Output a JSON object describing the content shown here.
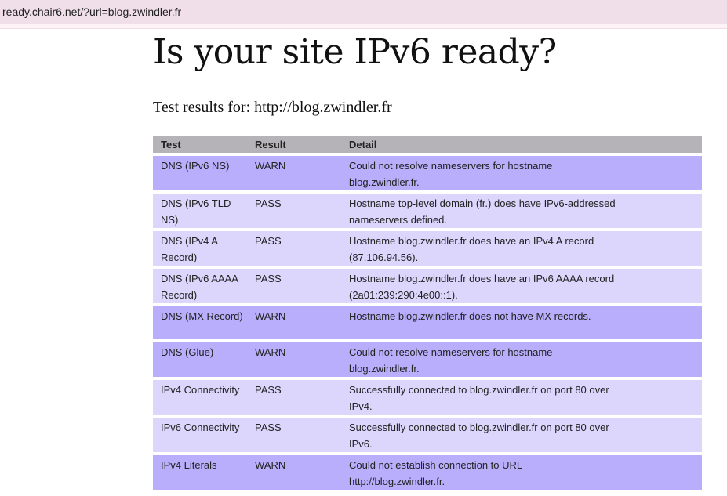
{
  "browser": {
    "url": "ready.chair6.net/?url=blog.zwindler.fr"
  },
  "page": {
    "title": "Is your site IPv6 ready?",
    "subtitle": "Test results for: http://blog.zwindler.fr"
  },
  "table": {
    "headers": [
      "Test",
      "Result",
      "Detail"
    ],
    "rows": [
      {
        "test": "DNS (IPv6 NS)",
        "result": "WARN",
        "detail": "Could not resolve nameservers for hostname blog.zwindler.fr."
      },
      {
        "test": "DNS (IPv6 TLD NS)",
        "result": "PASS",
        "detail": "Hostname top-level domain (fr.) does have IPv6-addressed nameservers defined."
      },
      {
        "test": "DNS (IPv4 A Record)",
        "result": "PASS",
        "detail": "Hostname blog.zwindler.fr does have an IPv4 A record (87.106.94.56)."
      },
      {
        "test": "DNS (IPv6 AAAA Record)",
        "result": "PASS",
        "detail": "Hostname blog.zwindler.fr does have an IPv6 AAAA record (2a01:239:290:4e00::1)."
      },
      {
        "test": "DNS (MX Record)",
        "result": "WARN",
        "detail": "Hostname blog.zwindler.fr does not have MX records."
      },
      {
        "test": "DNS (Glue)",
        "result": "WARN",
        "detail": "Could not resolve nameservers for hostname blog.zwindler.fr."
      },
      {
        "test": "IPv4 Connectivity",
        "result": "PASS",
        "detail": "Successfully connected to blog.zwindler.fr on port 80 over IPv4."
      },
      {
        "test": "IPv6 Connectivity",
        "result": "PASS",
        "detail": "Successfully connected to blog.zwindler.fr on port 80 over IPv6."
      },
      {
        "test": "IPv4 Literals",
        "result": "WARN",
        "detail": "Could not establish connection to URL http://blog.zwindler.fr."
      }
    ]
  },
  "colors": {
    "warn": "#b8aefc",
    "pass": "#dcd6fd",
    "header": "#b5b3b8"
  }
}
